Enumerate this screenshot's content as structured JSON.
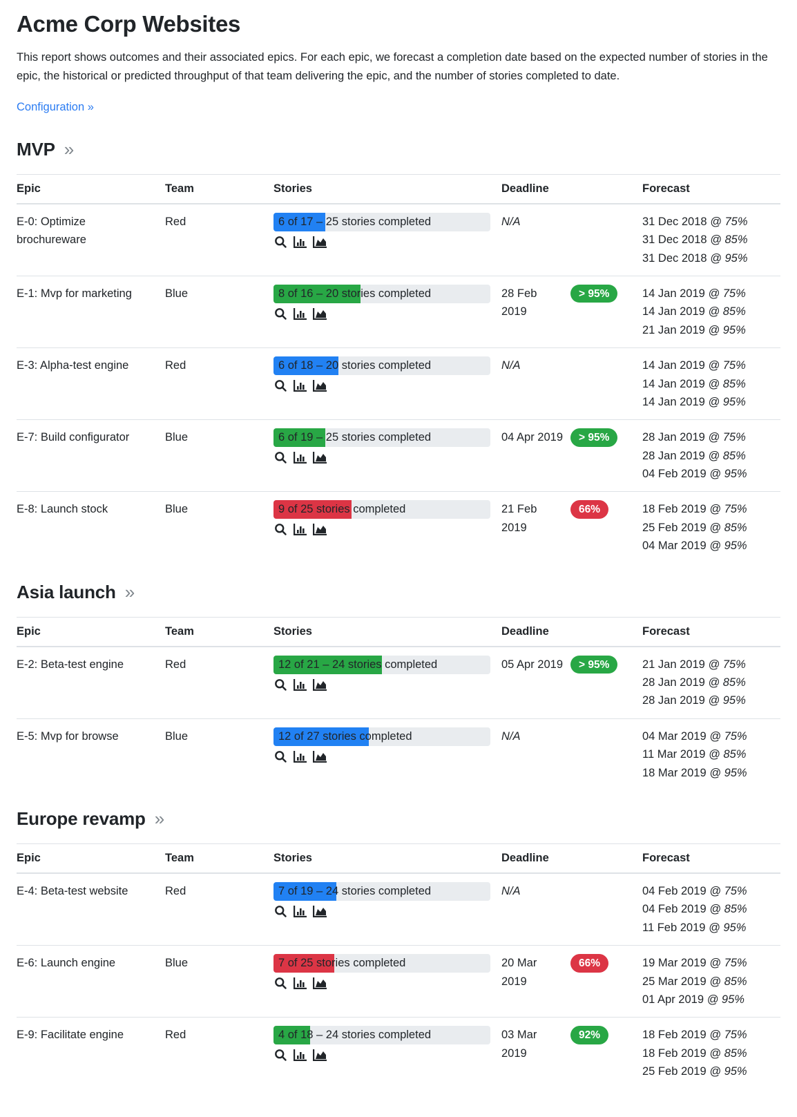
{
  "page": {
    "title": "Acme Corp Websites",
    "description": "This report shows outcomes and their associated epics. For each epic, we forecast a completion date based on the expected number of stories in the epic, the historical or predicted throughput of that team delivering the epic, and the number of stories completed to date.",
    "configuration_link": "Configuration »"
  },
  "table_columns": [
    "Epic",
    "Team",
    "Stories",
    "Deadline",
    "Forecast"
  ],
  "icons": {
    "search": "search-icon",
    "bar_chart": "bar-chart-icon",
    "area_chart": "area-chart-icon"
  },
  "colors": {
    "link_blue": "#2b7cf2",
    "bar_blue": "#2181f3",
    "bar_green": "#28a745",
    "bar_red": "#dc3545",
    "bar_track": "#e9ecef",
    "badge_green": "#28a745",
    "badge_red": "#dc3545",
    "row_border": "#dee2e6",
    "chevron_gray": "#80878d",
    "text": "#212529"
  },
  "sections": [
    {
      "title": "MVP",
      "chevron": "»",
      "rows": [
        {
          "epic": "E-0: Optimize brochureware",
          "team": "Red",
          "stories": {
            "label": "6 of 17 – 25 stories completed",
            "fill_percent": 24,
            "fill_color": "blue"
          },
          "deadline": "N/A",
          "deadline_is_na": true,
          "badge": null,
          "forecast": [
            {
              "date": "31 Dec 2018",
              "confidence": "@ 75%"
            },
            {
              "date": "31 Dec 2018",
              "confidence": "@ 85%"
            },
            {
              "date": "31 Dec 2018",
              "confidence": "@ 95%"
            }
          ]
        },
        {
          "epic": "E-1: Mvp for marketing",
          "team": "Blue",
          "stories": {
            "label": "8 of 16 – 20 stories completed",
            "fill_percent": 40,
            "fill_color": "green"
          },
          "deadline": "28 Feb 2019",
          "deadline_is_na": false,
          "badge": {
            "label": "> 95%",
            "color": "green"
          },
          "forecast": [
            {
              "date": "14 Jan 2019",
              "confidence": "@ 75%"
            },
            {
              "date": "14 Jan 2019",
              "confidence": "@ 85%"
            },
            {
              "date": "21 Jan 2019",
              "confidence": "@ 95%"
            }
          ]
        },
        {
          "epic": "E-3: Alpha-test engine",
          "team": "Red",
          "stories": {
            "label": "6 of 18 – 20 stories completed",
            "fill_percent": 30,
            "fill_color": "blue"
          },
          "deadline": "N/A",
          "deadline_is_na": true,
          "badge": null,
          "forecast": [
            {
              "date": "14 Jan 2019",
              "confidence": "@ 75%"
            },
            {
              "date": "14 Jan 2019",
              "confidence": "@ 85%"
            },
            {
              "date": "14 Jan 2019",
              "confidence": "@ 95%"
            }
          ]
        },
        {
          "epic": "E-7: Build configurator",
          "team": "Blue",
          "stories": {
            "label": "6 of 19 – 25 stories completed",
            "fill_percent": 24,
            "fill_color": "green"
          },
          "deadline": "04 Apr 2019",
          "deadline_is_na": false,
          "badge": {
            "label": "> 95%",
            "color": "green"
          },
          "forecast": [
            {
              "date": "28 Jan 2019",
              "confidence": "@ 75%"
            },
            {
              "date": "28 Jan 2019",
              "confidence": "@ 85%"
            },
            {
              "date": "04 Feb 2019",
              "confidence": "@ 95%"
            }
          ]
        },
        {
          "epic": "E-8: Launch stock",
          "team": "Blue",
          "stories": {
            "label": "9 of 25 stories completed",
            "fill_percent": 36,
            "fill_color": "red"
          },
          "deadline": "21 Feb 2019",
          "deadline_is_na": false,
          "badge": {
            "label": "66%",
            "color": "red"
          },
          "forecast": [
            {
              "date": "18 Feb 2019",
              "confidence": "@ 75%"
            },
            {
              "date": "25 Feb 2019",
              "confidence": "@ 85%"
            },
            {
              "date": "04 Mar 2019",
              "confidence": "@ 95%"
            }
          ]
        }
      ]
    },
    {
      "title": "Asia launch",
      "chevron": "»",
      "rows": [
        {
          "epic": "E-2: Beta-test engine",
          "team": "Red",
          "stories": {
            "label": "12 of 21 – 24 stories completed",
            "fill_percent": 50,
            "fill_color": "green"
          },
          "deadline": "05 Apr 2019",
          "deadline_is_na": false,
          "badge": {
            "label": "> 95%",
            "color": "green"
          },
          "forecast": [
            {
              "date": "21 Jan 2019",
              "confidence": "@ 75%"
            },
            {
              "date": "28 Jan 2019",
              "confidence": "@ 85%"
            },
            {
              "date": "28 Jan 2019",
              "confidence": "@ 95%"
            }
          ]
        },
        {
          "epic": "E-5: Mvp for browse",
          "team": "Blue",
          "stories": {
            "label": "12 of 27 stories completed",
            "fill_percent": 44,
            "fill_color": "blue"
          },
          "deadline": "N/A",
          "deadline_is_na": true,
          "badge": null,
          "forecast": [
            {
              "date": "04 Mar 2019",
              "confidence": "@ 75%"
            },
            {
              "date": "11 Mar 2019",
              "confidence": "@ 85%"
            },
            {
              "date": "18 Mar 2019",
              "confidence": "@ 95%"
            }
          ]
        }
      ]
    },
    {
      "title": "Europe revamp",
      "chevron": "»",
      "rows": [
        {
          "epic": "E-4: Beta-test website",
          "team": "Red",
          "stories": {
            "label": "7 of 19 – 24 stories completed",
            "fill_percent": 29,
            "fill_color": "blue"
          },
          "deadline": "N/A",
          "deadline_is_na": true,
          "badge": null,
          "forecast": [
            {
              "date": "04 Feb 2019",
              "confidence": "@ 75%"
            },
            {
              "date": "04 Feb 2019",
              "confidence": "@ 85%"
            },
            {
              "date": "11 Feb 2019",
              "confidence": "@ 95%"
            }
          ]
        },
        {
          "epic": "E-6: Launch engine",
          "team": "Blue",
          "stories": {
            "label": "7 of 25 stories completed",
            "fill_percent": 28,
            "fill_color": "red"
          },
          "deadline": "20 Mar 2019",
          "deadline_is_na": false,
          "badge": {
            "label": "66%",
            "color": "red"
          },
          "forecast": [
            {
              "date": "19 Mar 2019",
              "confidence": "@ 75%"
            },
            {
              "date": "25 Mar 2019",
              "confidence": "@ 85%"
            },
            {
              "date": "01 Apr 2019",
              "confidence": "@ 95%"
            }
          ]
        },
        {
          "epic": "E-9: Facilitate engine",
          "team": "Red",
          "stories": {
            "label": "4 of 18 – 24 stories completed",
            "fill_percent": 17,
            "fill_color": "green"
          },
          "deadline": "03 Mar 2019",
          "deadline_is_na": false,
          "badge": {
            "label": "92%",
            "color": "green"
          },
          "forecast": [
            {
              "date": "18 Feb 2019",
              "confidence": "@ 75%"
            },
            {
              "date": "18 Feb 2019",
              "confidence": "@ 85%"
            },
            {
              "date": "25 Feb 2019",
              "confidence": "@ 95%"
            }
          ]
        }
      ]
    }
  ]
}
